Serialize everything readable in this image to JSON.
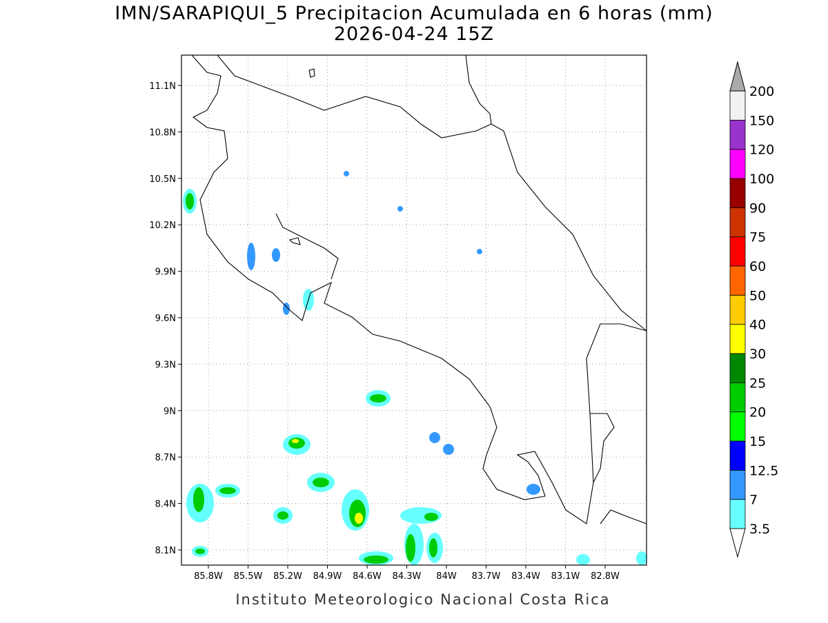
{
  "title": "IMN/SARAPIQUI_5 Precipitacion Acumulada en 6 horas (mm)",
  "subtitle": "2026-04-24 15Z",
  "map": {
    "lon_ticks": [
      "85.8W",
      "85.5W",
      "85.2W",
      "84.9W",
      "84.6W",
      "84.3W",
      "84W",
      "83.7W",
      "83.4W",
      "83.1W",
      "82.8W"
    ],
    "lat_ticks": [
      "11.1N",
      "10.8N",
      "10.5N",
      "10.2N",
      "9.9N",
      "9.6N",
      "9.3N",
      "9N",
      "8.7N",
      "8.4N",
      "8.1N"
    ]
  },
  "legend": {
    "levels": [
      3.5,
      7,
      12.5,
      15,
      20,
      25,
      30,
      40,
      50,
      60,
      75,
      90,
      100,
      120,
      150,
      200
    ],
    "colors": [
      "#ffffff",
      "#66ffff",
      "#3399ff",
      "#0000ff",
      "#00ff00",
      "#00cc00",
      "#008800",
      "#ffff00",
      "#ffcc00",
      "#ff6600",
      "#ff0000",
      "#cc3300",
      "#990000",
      "#ff00ff",
      "#9933cc",
      "#f2f2f2",
      "#aaaaaa"
    ]
  },
  "footer": "Instituto Meteorologico Nacional Costa Rica"
}
